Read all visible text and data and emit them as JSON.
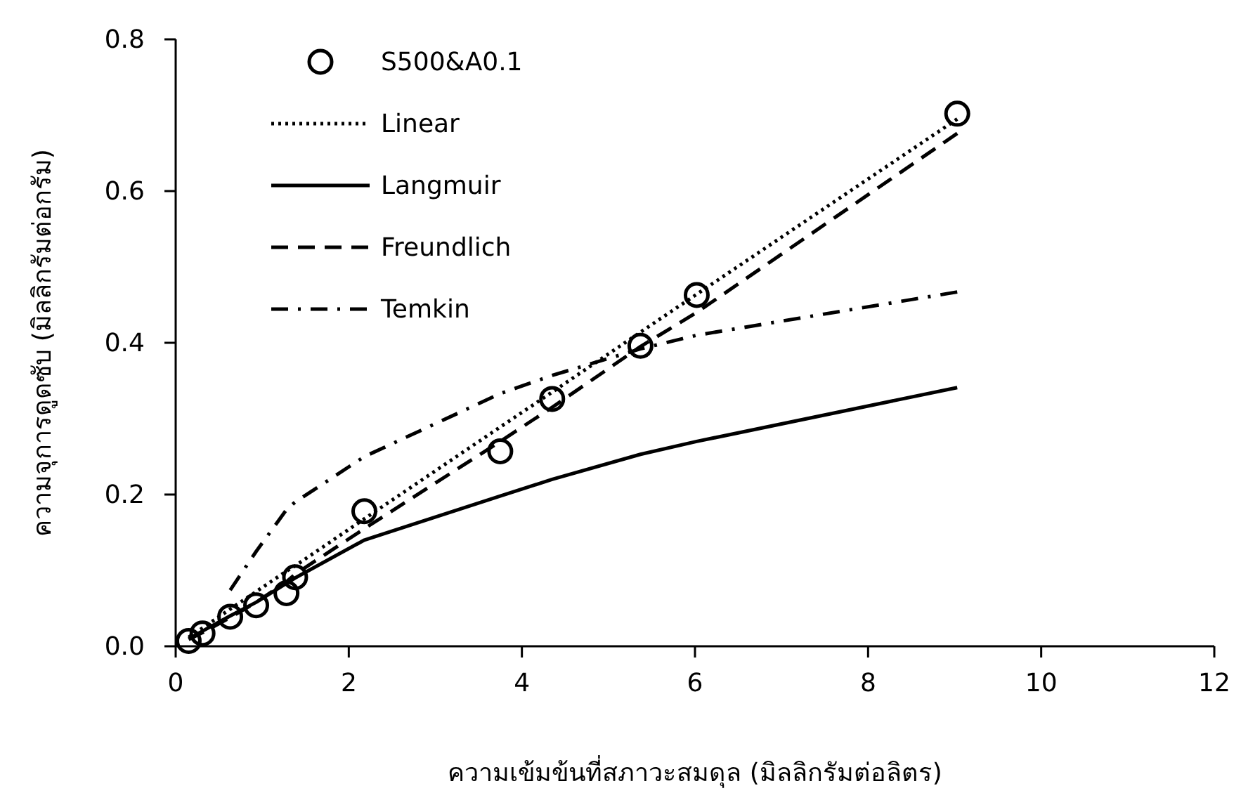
{
  "chart_data": {
    "type": "scatter",
    "xlabel": "ความเข้มข้นที่สภาวะสมดุล (มิลลิกรัมต่อลิตร)",
    "ylabel": "ความจุการดูดซับ (มิลลิกรัมต่อกรัม)",
    "x": [
      0.15,
      0.31,
      0.63,
      0.93,
      1.28,
      1.38,
      2.18,
      3.75,
      4.35,
      5.37,
      6.02,
      9.03
    ],
    "series": [
      {
        "name": "S500&A0.1",
        "marker": "circle",
        "color": "#000000",
        "values": [
          0.007,
          0.017,
          0.039,
          0.054,
          0.07,
          0.091,
          0.178,
          0.257,
          0.326,
          0.396,
          0.463,
          0.702
        ]
      },
      {
        "name": "Linear",
        "type": "line",
        "marker": "none",
        "line_style": "dotted",
        "color": "#000000",
        "values": [
          0.012,
          0.024,
          0.049,
          0.072,
          0.099,
          0.106,
          0.168,
          0.289,
          0.335,
          0.414,
          0.464,
          0.695
        ]
      },
      {
        "name": "Langmuir",
        "type": "line",
        "marker": "none",
        "line_style": "solid",
        "color": "#000000",
        "values": [
          0.01,
          0.02,
          0.04,
          0.058,
          0.083,
          0.09,
          0.14,
          0.198,
          0.22,
          0.253,
          0.27,
          0.341
        ]
      },
      {
        "name": "Freundlich",
        "type": "line",
        "marker": "none",
        "line_style": "dashed",
        "color": "#000000",
        "values": [
          0.009,
          0.018,
          0.038,
          0.058,
          0.085,
          0.095,
          0.155,
          0.27,
          0.315,
          0.395,
          0.44,
          0.676
        ]
      },
      {
        "name": "Temkin",
        "type": "line",
        "marker": "none",
        "line_style": "dashdot",
        "color": "#000000",
        "values": [
          null,
          null,
          0.074,
          0.125,
          0.18,
          0.19,
          0.25,
          0.333,
          0.357,
          0.392,
          0.41,
          0.467
        ]
      }
    ],
    "xlim": [
      0,
      12
    ],
    "xticks": [
      0,
      2,
      4,
      6,
      8,
      10,
      12
    ],
    "ylim": [
      0,
      0.8
    ],
    "yticks": [
      {
        "value": 0,
        "label": "0.0"
      },
      {
        "value": 0.2,
        "label": "0.2"
      },
      {
        "value": 0.4,
        "label": "0.4"
      },
      {
        "value": 0.6,
        "label": "0.6"
      },
      {
        "value": 0.8,
        "label": "0.8"
      }
    ],
    "grid": false,
    "legend": "top left"
  }
}
